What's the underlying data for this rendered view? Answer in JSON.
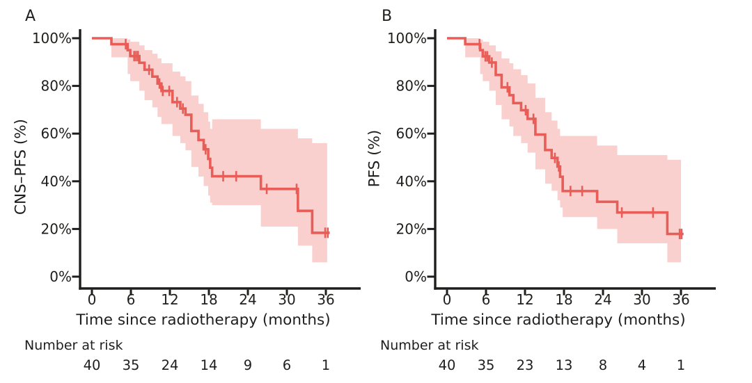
{
  "figure": {
    "background": "#ffffff",
    "text_color": "#1e1e1c",
    "panels": [
      {
        "label": "A",
        "y_axis_title": "CNS–PFS (%)",
        "x_axis_title": "Time since radiotherapy (months)",
        "risk_caption": "Number at risk"
      },
      {
        "label": "B",
        "y_axis_title": "PFS (%)",
        "x_axis_title": "Time since radiotherapy (months)",
        "risk_caption": "Number at risk"
      }
    ]
  },
  "chart_data": [
    {
      "type": "line",
      "subtype": "kaplan_meier_step_with_ci_band",
      "title": "",
      "xlabel": "Time since radiotherapy (months)",
      "ylabel": "CNS–PFS (%)",
      "xlim": [
        0,
        38
      ],
      "ylim": [
        0,
        100
      ],
      "grid": false,
      "legend": "none",
      "line_color": "#e85d57",
      "band_color": "#f9d0cd",
      "x_ticks": [
        0,
        6,
        12,
        18,
        24,
        30,
        36
      ],
      "y_ticks": [
        [
          0,
          "0%"
        ],
        [
          20,
          "20%"
        ],
        [
          40,
          "40%"
        ],
        [
          60,
          "60%"
        ],
        [
          80,
          "80%"
        ],
        [
          100,
          "100%"
        ]
      ],
      "steps_pct": [
        [
          0,
          100
        ],
        [
          3,
          97.5
        ],
        [
          5.5,
          95
        ],
        [
          5.9,
          92.5
        ],
        [
          7.3,
          89.7
        ],
        [
          8.1,
          86.8
        ],
        [
          9.3,
          83.9
        ],
        [
          10.1,
          81
        ],
        [
          10.7,
          77.9
        ],
        [
          12.4,
          73.2
        ],
        [
          13.6,
          70.5
        ],
        [
          14.4,
          67.9
        ],
        [
          15.3,
          61.1
        ],
        [
          16.4,
          57.3
        ],
        [
          17.2,
          53.4
        ],
        [
          17.9,
          49.4
        ],
        [
          18.2,
          45.7
        ],
        [
          18.5,
          42.1
        ],
        [
          26,
          36.8
        ],
        [
          31.7,
          27.6
        ],
        [
          33.9,
          18.4
        ]
      ],
      "curve_end_month": 36.6,
      "censor_marks_pct": [
        [
          5.2,
          97.5
        ],
        [
          6.5,
          92.5
        ],
        [
          6.8,
          92.5
        ],
        [
          7.1,
          92.5
        ],
        [
          8.8,
          86.8
        ],
        [
          10.4,
          81
        ],
        [
          10.9,
          77.9
        ],
        [
          11.9,
          77.9
        ],
        [
          13.1,
          73.2
        ],
        [
          14.0,
          70.5
        ],
        [
          17.5,
          53.4
        ],
        [
          20.2,
          42.1
        ],
        [
          22.2,
          42.1
        ],
        [
          26.9,
          36.8
        ],
        [
          31.5,
          36.8
        ],
        [
          35.9,
          18.4
        ],
        [
          36.3,
          18.4
        ]
      ],
      "ci_band_pct": [
        [
          3,
          92,
          100
        ],
        [
          5.5,
          85,
          99.5
        ],
        [
          5.9,
          82,
          98.5
        ],
        [
          7.3,
          78,
          97
        ],
        [
          8.1,
          74,
          95
        ],
        [
          9.3,
          71,
          93.5
        ],
        [
          10.1,
          67,
          91.5
        ],
        [
          10.7,
          64,
          89.5
        ],
        [
          12.4,
          59,
          86
        ],
        [
          13.6,
          56,
          84
        ],
        [
          14.4,
          53,
          82
        ],
        [
          15.3,
          46,
          76
        ],
        [
          16.4,
          42,
          72.5
        ],
        [
          17.2,
          38,
          69
        ],
        [
          17.9,
          34,
          65
        ],
        [
          18.2,
          31,
          62
        ],
        [
          18.5,
          30,
          66
        ],
        [
          26,
          21,
          62
        ],
        [
          31.7,
          13,
          58
        ],
        [
          33.9,
          6,
          56
        ]
      ],
      "band_end_month": 36.2,
      "number_at_risk": {
        "times": [
          0,
          6,
          12,
          18,
          24,
          30,
          36
        ],
        "counts": [
          40,
          35,
          24,
          14,
          9,
          6,
          1
        ]
      }
    },
    {
      "type": "line",
      "subtype": "kaplan_meier_step_with_ci_band",
      "title": "",
      "xlabel": "Time since radiotherapy (months)",
      "ylabel": "PFS (%)",
      "xlim": [
        0,
        38
      ],
      "ylim": [
        0,
        100
      ],
      "grid": false,
      "legend": "none",
      "line_color": "#e85d57",
      "band_color": "#f9d0cd",
      "x_ticks": [
        0,
        6,
        12,
        18,
        24,
        30,
        36
      ],
      "y_ticks": [
        [
          0,
          "0%"
        ],
        [
          20,
          "20%"
        ],
        [
          40,
          "40%"
        ],
        [
          60,
          "60%"
        ],
        [
          80,
          "80%"
        ],
        [
          100,
          "100%"
        ]
      ],
      "steps_pct": [
        [
          0,
          100
        ],
        [
          2.8,
          97.5
        ],
        [
          5.1,
          95
        ],
        [
          5.5,
          92.4
        ],
        [
          6.5,
          89.8
        ],
        [
          7.5,
          84.6
        ],
        [
          8.4,
          79.4
        ],
        [
          9.6,
          76.1
        ],
        [
          10.2,
          72.8
        ],
        [
          11.4,
          69.8
        ],
        [
          12.4,
          66.2
        ],
        [
          13.6,
          59.6
        ],
        [
          15.1,
          53.1
        ],
        [
          16.1,
          49.8
        ],
        [
          17.0,
          46.2
        ],
        [
          17.4,
          41.9
        ],
        [
          17.8,
          35.9
        ],
        [
          23.1,
          31.4
        ],
        [
          26.2,
          26.9
        ],
        [
          33.9,
          17.9
        ]
      ],
      "curve_end_month": 36.4,
      "censor_marks_pct": [
        [
          5.0,
          97.5
        ],
        [
          5.9,
          92.4
        ],
        [
          6.2,
          92.4
        ],
        [
          6.9,
          89.8
        ],
        [
          9.3,
          79.4
        ],
        [
          12.1,
          69.8
        ],
        [
          13.3,
          66.2
        ],
        [
          16.6,
          49.8
        ],
        [
          17.2,
          46.2
        ],
        [
          19.0,
          35.9
        ],
        [
          20.8,
          35.9
        ],
        [
          26.9,
          26.9
        ],
        [
          31.7,
          26.9
        ],
        [
          35.8,
          17.9
        ],
        [
          36.1,
          17.9
        ]
      ],
      "ci_band_pct": [
        [
          2.8,
          92,
          100
        ],
        [
          5.1,
          85,
          99.5
        ],
        [
          5.5,
          82,
          98.5
        ],
        [
          6.5,
          78,
          97
        ],
        [
          7.5,
          72,
          94.5
        ],
        [
          8.4,
          66,
          91.5
        ],
        [
          9.6,
          63,
          89.5
        ],
        [
          10.2,
          59,
          87
        ],
        [
          11.4,
          56,
          84.5
        ],
        [
          12.4,
          52,
          81
        ],
        [
          13.6,
          45,
          75
        ],
        [
          15.1,
          39,
          69
        ],
        [
          16.1,
          36,
          65.5
        ],
        [
          17.0,
          32,
          62
        ],
        [
          17.4,
          29,
          59
        ],
        [
          17.8,
          25,
          59
        ],
        [
          23.1,
          20,
          55
        ],
        [
          26.2,
          14,
          51
        ],
        [
          33.9,
          6,
          49
        ]
      ],
      "band_end_month": 36.0,
      "number_at_risk": {
        "times": [
          0,
          6,
          12,
          18,
          24,
          30,
          36
        ],
        "counts": [
          40,
          35,
          23,
          13,
          8,
          4,
          1
        ]
      }
    }
  ]
}
